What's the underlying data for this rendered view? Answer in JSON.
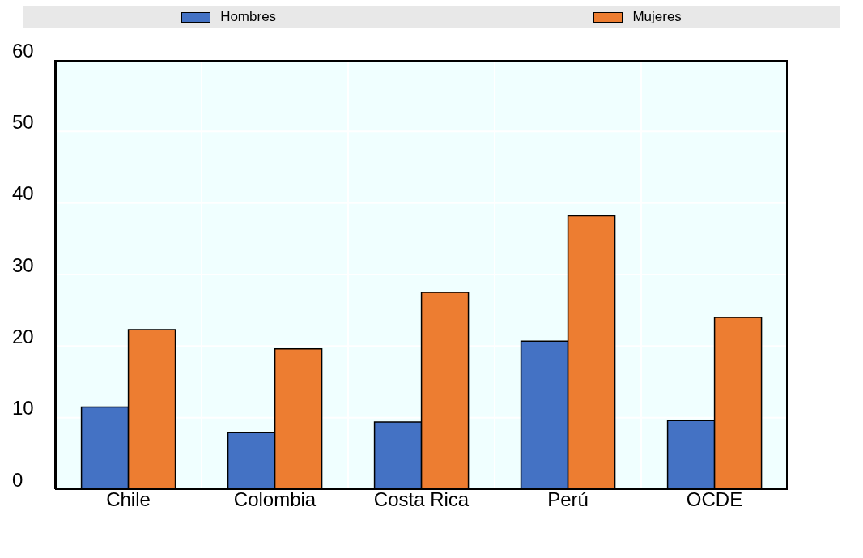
{
  "chart_data": {
    "type": "bar",
    "categories": [
      "Chile",
      "Colombia",
      "Costa Rica",
      "Perú",
      "OCDE"
    ],
    "series": [
      {
        "name": "Hombres",
        "color": "#4472c4",
        "values": [
          11.5,
          7.9,
          9.4,
          20.7,
          9.6
        ]
      },
      {
        "name": "Mujeres",
        "color": "#ed7d31",
        "values": [
          22.3,
          19.6,
          27.5,
          38.2,
          24.0
        ]
      }
    ],
    "ylim": [
      0,
      60
    ],
    "yticks": [
      0,
      10,
      20,
      30,
      40,
      50,
      60
    ],
    "grid": true,
    "legend": "top"
  }
}
